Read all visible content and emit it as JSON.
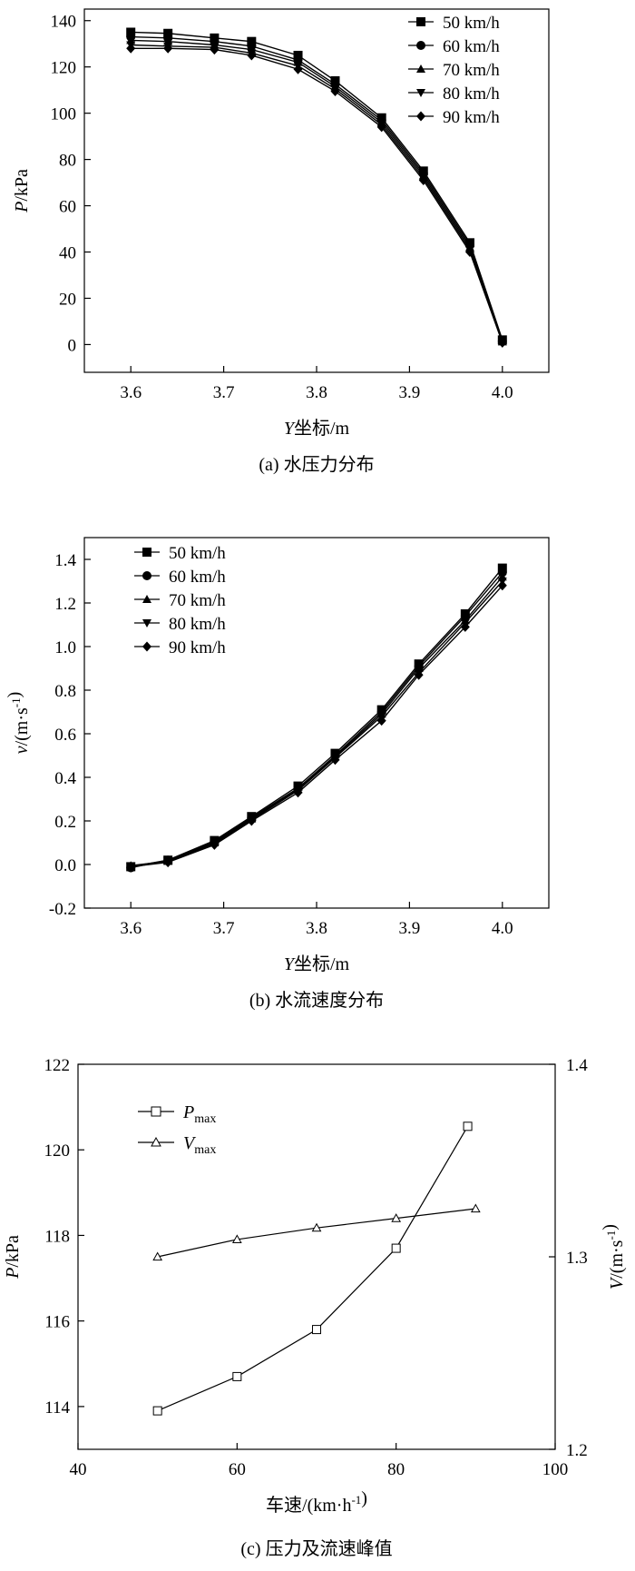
{
  "chart_data": [
    {
      "type": "line",
      "caption": "(a) 水压力分布",
      "xlabel": "Y坐标/m",
      "ylabel": "P/kPa",
      "xlim": [
        3.55,
        4.05
      ],
      "ylim": [
        -12,
        145
      ],
      "xticks": [
        3.6,
        3.7,
        3.8,
        3.9,
        4.0
      ],
      "xtick_labels": [
        "3.6",
        "3.7",
        "3.8",
        "3.9",
        "4.0"
      ],
      "yticks": [
        0,
        20,
        40,
        60,
        80,
        100,
        120,
        140
      ],
      "ytick_labels": [
        "0",
        "20",
        "40",
        "60",
        "80",
        "100",
        "120",
        "140"
      ],
      "legend_position": "top-right",
      "x": [
        3.6,
        3.64,
        3.69,
        3.73,
        3.78,
        3.82,
        3.87,
        3.915,
        3.965,
        4.0
      ],
      "series": [
        {
          "name": "50 km/h",
          "marker": "square",
          "values": [
            135,
            134.5,
            132.5,
            131,
            125,
            114,
            98,
            75,
            44,
            2
          ]
        },
        {
          "name": "60 km/h",
          "marker": "circle",
          "values": [
            133,
            132.5,
            131,
            129,
            123,
            112.5,
            97,
            74,
            43,
            1.5
          ]
        },
        {
          "name": "70 km/h",
          "marker": "triangle",
          "values": [
            131.5,
            131,
            129.5,
            127.5,
            122,
            111.5,
            96,
            73,
            42,
            1.2
          ]
        },
        {
          "name": "80 km/h",
          "marker": "triangle-down",
          "values": [
            129.5,
            129,
            128.5,
            126,
            120.5,
            110.5,
            95,
            72,
            41,
            1
          ]
        },
        {
          "name": "90 km/h",
          "marker": "diamond",
          "values": [
            128,
            128,
            127.5,
            125,
            119,
            109.5,
            94,
            71,
            40,
            0.8
          ]
        }
      ]
    },
    {
      "type": "line",
      "caption": "(b) 水流速度分布",
      "xlabel": "Y坐标/m",
      "ylabel": "v/(m·s-1)",
      "xlim": [
        3.55,
        4.05
      ],
      "ylim": [
        -0.2,
        1.5
      ],
      "xticks": [
        3.6,
        3.7,
        3.8,
        3.9,
        4.0
      ],
      "xtick_labels": [
        "3.6",
        "3.7",
        "3.8",
        "3.9",
        "4.0"
      ],
      "yticks": [
        -0.2,
        0.0,
        0.2,
        0.4,
        0.6,
        0.8,
        1.0,
        1.2,
        1.4
      ],
      "ytick_labels": [
        "-0.2",
        "0.0",
        "0.2",
        "0.4",
        "0.6",
        "0.8",
        "1.0",
        "1.2",
        "1.4"
      ],
      "legend_position": "top-left",
      "x": [
        3.6,
        3.64,
        3.69,
        3.73,
        3.78,
        3.82,
        3.87,
        3.91,
        3.96,
        4.0
      ],
      "series": [
        {
          "name": "50 km/h",
          "marker": "square",
          "values": [
            -0.01,
            0.02,
            0.11,
            0.22,
            0.36,
            0.51,
            0.71,
            0.92,
            1.15,
            1.36
          ]
        },
        {
          "name": "60 km/h",
          "marker": "circle",
          "values": [
            -0.015,
            0.02,
            0.105,
            0.215,
            0.35,
            0.5,
            0.7,
            0.91,
            1.14,
            1.34
          ]
        },
        {
          "name": "70 km/h",
          "marker": "triangle",
          "values": [
            -0.005,
            0.015,
            0.1,
            0.21,
            0.345,
            0.495,
            0.69,
            0.9,
            1.12,
            1.32
          ]
        },
        {
          "name": "80 km/h",
          "marker": "triangle-down",
          "values": [
            -0.01,
            0.015,
            0.095,
            0.205,
            0.34,
            0.49,
            0.68,
            0.88,
            1.11,
            1.3
          ]
        },
        {
          "name": "90 km/h",
          "marker": "diamond",
          "values": [
            -0.01,
            0.01,
            0.09,
            0.2,
            0.33,
            0.48,
            0.66,
            0.87,
            1.09,
            1.28
          ]
        }
      ]
    },
    {
      "type": "line",
      "caption": "(c) 压力及流速峰值",
      "xlabel": "车速/(km·h-1)",
      "ylabel": "P/kPa",
      "y2label": "V/(m·s-1)",
      "xlim": [
        40,
        100
      ],
      "ylim": [
        113,
        122
      ],
      "y2lim": [
        1.2,
        1.4
      ],
      "xticks": [
        40,
        60,
        80,
        100
      ],
      "xtick_labels": [
        "40",
        "60",
        "80",
        "100"
      ],
      "yticks": [
        114,
        116,
        118,
        120,
        122
      ],
      "ytick_labels": [
        "114",
        "116",
        "118",
        "120",
        "122"
      ],
      "y2ticks": [
        1.2,
        1.3,
        1.4
      ],
      "y2tick_labels": [
        "1.2",
        "1.3",
        "1.4"
      ],
      "legend_position": "top-left",
      "series": [
        {
          "name": "Pmax",
          "name_main": "P",
          "name_sub": "max",
          "axis": "left",
          "marker": "open-square",
          "x": [
            50,
            60,
            70,
            80,
            89
          ],
          "values": [
            113.9,
            114.7,
            115.8,
            117.7,
            120.55
          ]
        },
        {
          "name": "Vmax",
          "name_main": "V",
          "name_sub": "max",
          "axis": "right",
          "marker": "open-triangle",
          "x": [
            50,
            60,
            70,
            80,
            90
          ],
          "values": [
            1.3,
            1.309,
            1.315,
            1.32,
            1.325
          ]
        }
      ]
    }
  ]
}
